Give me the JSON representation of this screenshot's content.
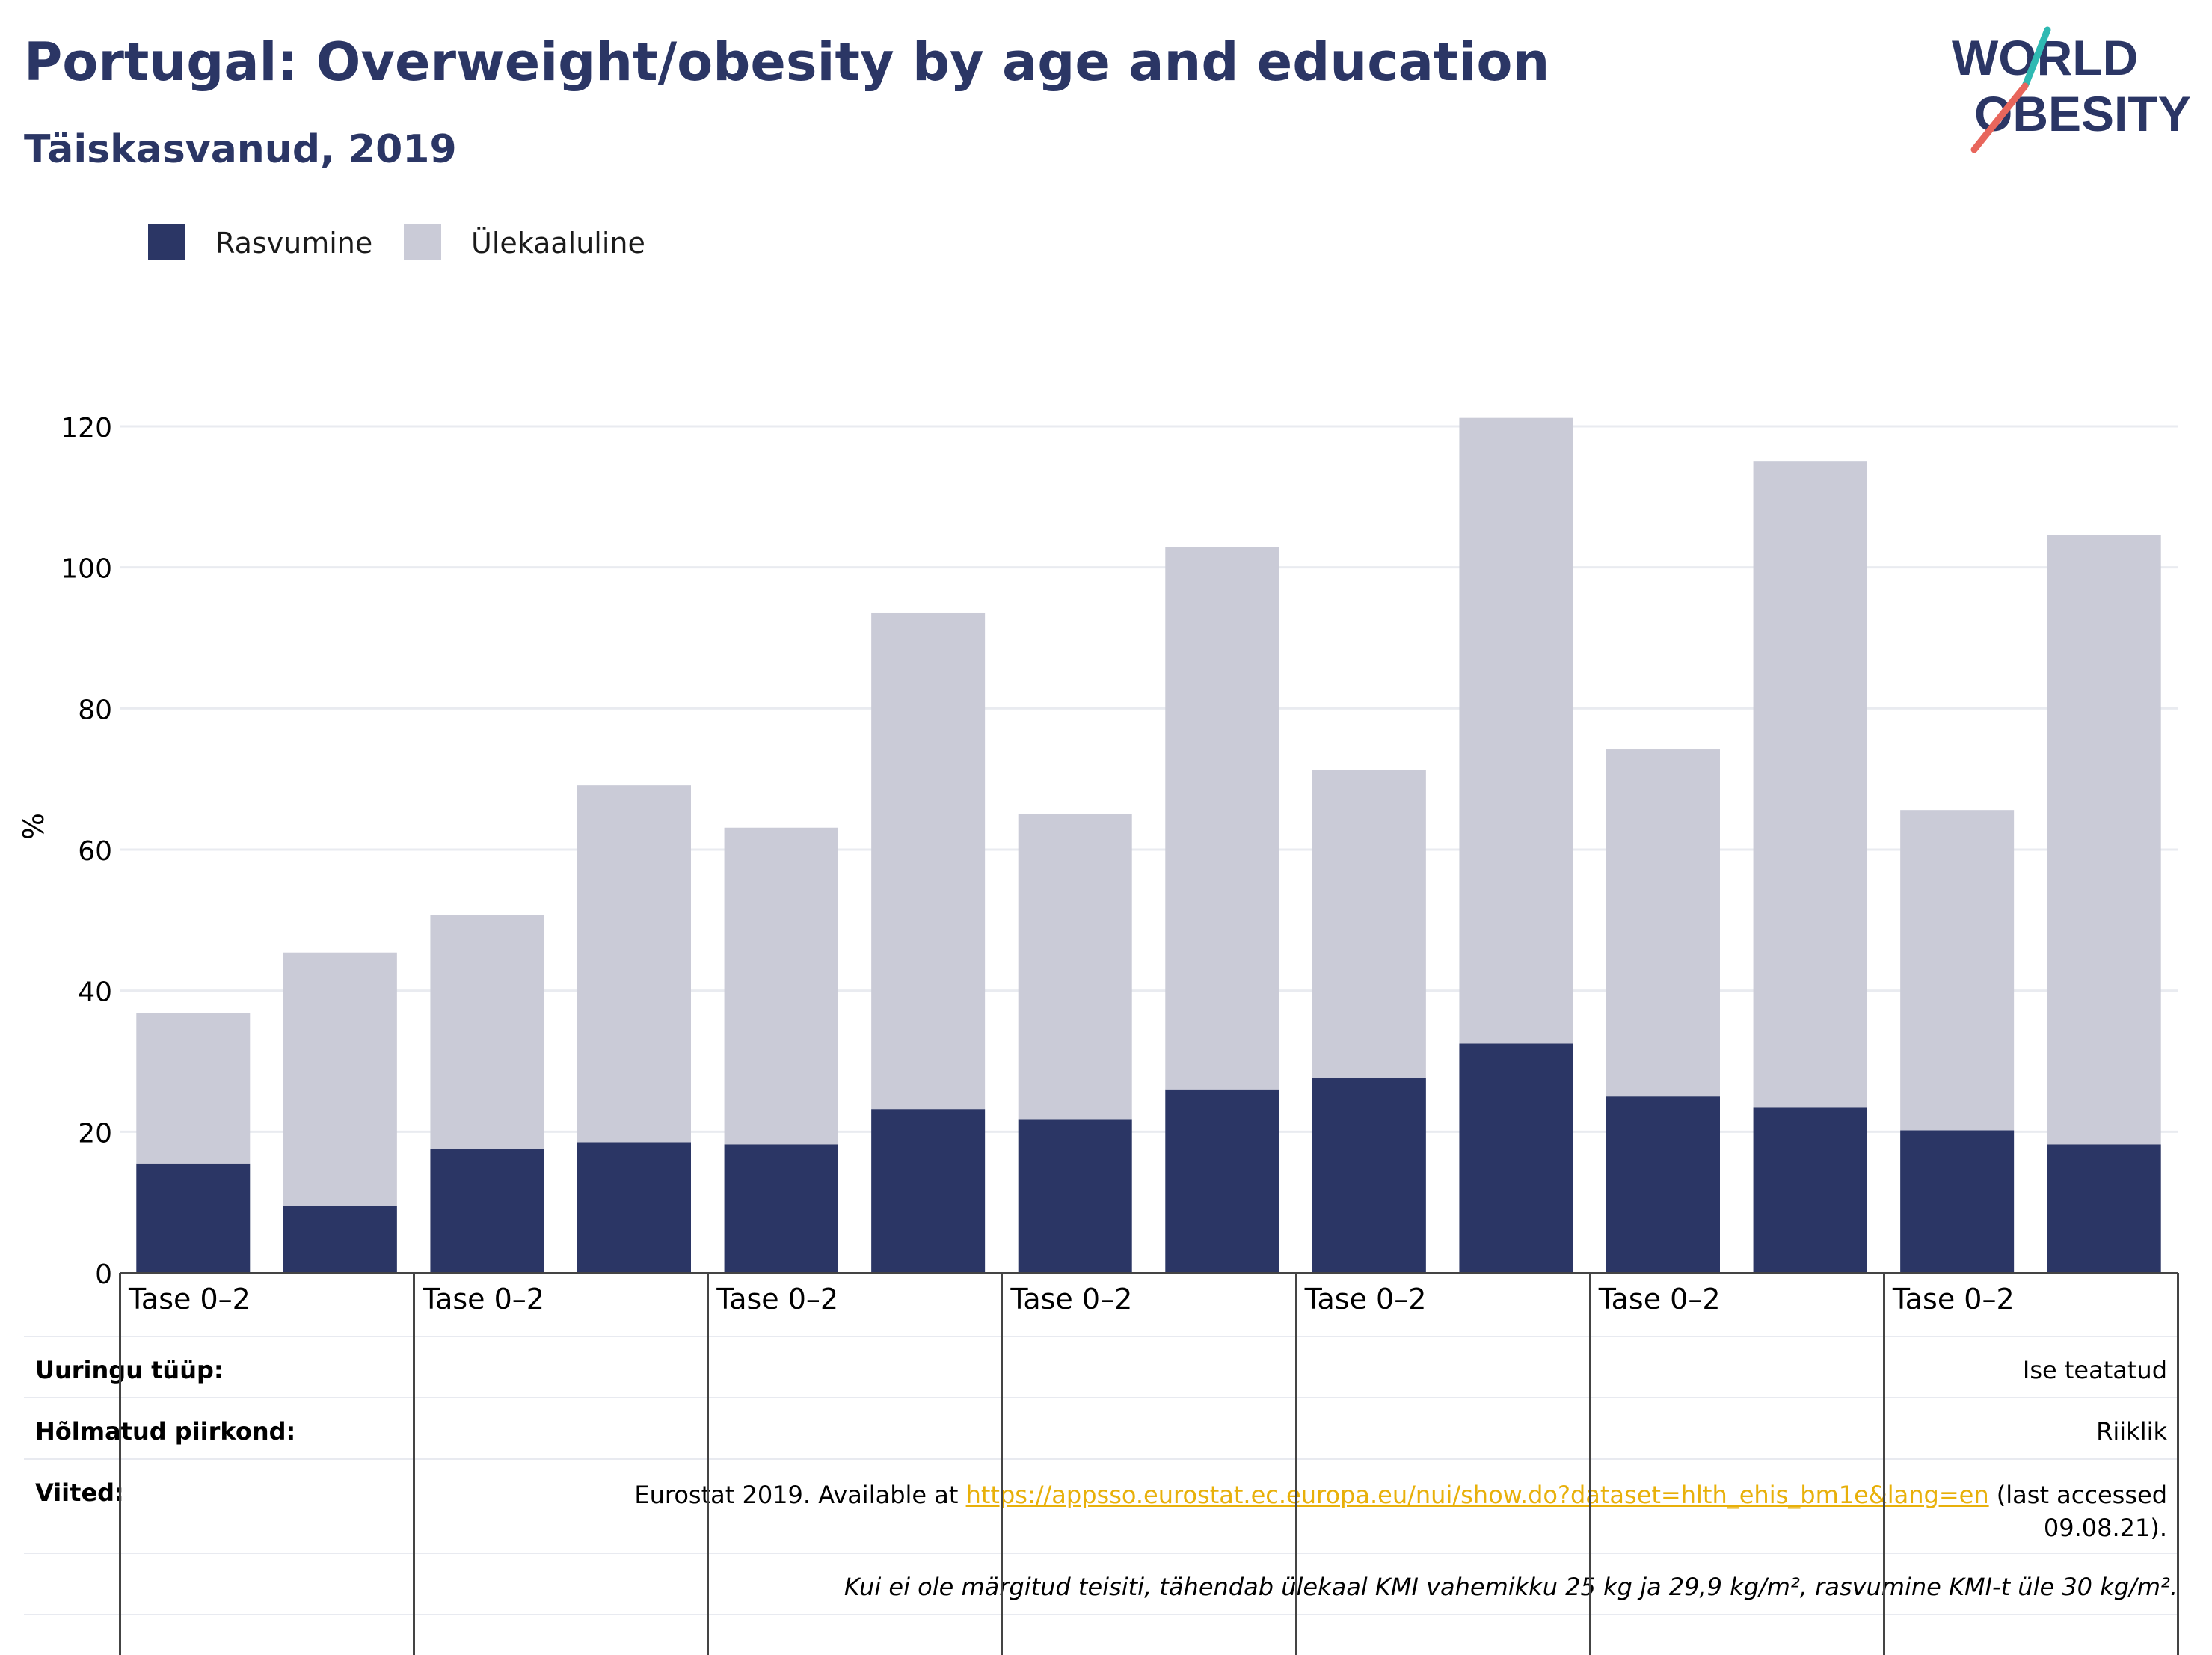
{
  "header": {
    "title": "Portugal: Overweight/obesity by age and education",
    "subtitle": "Täiskasvanud, 2019"
  },
  "logo": {
    "line1": "WORLD",
    "line2": "OBESITY"
  },
  "colors": {
    "obesity": "#2b3665",
    "overweight": "#cacbd7",
    "title": "#2b3665",
    "logo_teal": "#2fb9b2",
    "logo_coral": "#e8665c",
    "link": "#e8b00a"
  },
  "legend": [
    {
      "label": "Rasvumine",
      "color": "#2b3665"
    },
    {
      "label": "Ülekaaluline",
      "color": "#cacbd7"
    }
  ],
  "chart_data": {
    "type": "bar",
    "stacked": true,
    "ylabel": "%",
    "ylim": [
      0,
      130
    ],
    "yticks": [
      0,
      20,
      40,
      60,
      80,
      100,
      120
    ],
    "grid": true,
    "legend_position": "top-left",
    "group_labels": [
      "Tase 0–2",
      "Tase 0–2",
      "Tase 0–2",
      "Tase 0–2",
      "Tase 0–2",
      "Tase 0–2",
      "Tase 0–2"
    ],
    "bars_per_group": 2,
    "series": [
      {
        "name": "Rasvumine",
        "values": [
          15.5,
          9.5,
          17.5,
          18.5,
          18.2,
          23.2,
          21.8,
          26.0,
          27.6,
          32.5,
          25.0,
          23.5,
          20.2,
          18.2
        ]
      },
      {
        "name": "Ülekaaluline",
        "values": [
          21.3,
          35.9,
          33.2,
          50.6,
          44.9,
          70.3,
          43.2,
          76.9,
          43.7,
          88.7,
          49.2,
          91.5,
          45.4,
          86.4
        ]
      }
    ]
  },
  "info": {
    "survey_type_label": "Uuringu tüüp:",
    "survey_type_value": "Ise teatatud",
    "region_label": "Hõlmatud piirkond:",
    "region_value": "Riiklik",
    "references_label": "Viited:",
    "references_prefix": "Eurostat 2019. Available at ",
    "references_link": "https://appsso.eurostat.ec.europa.eu/nui/show.do?dataset=hlth_ehis_bm1e&lang=en",
    "references_suffix": " (last accessed",
    "references_date": "09.08.21).",
    "note": "Kui ei ole märgitud teisiti, tähendab ülekaal KMI vahemikku 25 kg ja 29,9 kg/m², rasvumine KMI-t üle 30 kg/m²."
  }
}
